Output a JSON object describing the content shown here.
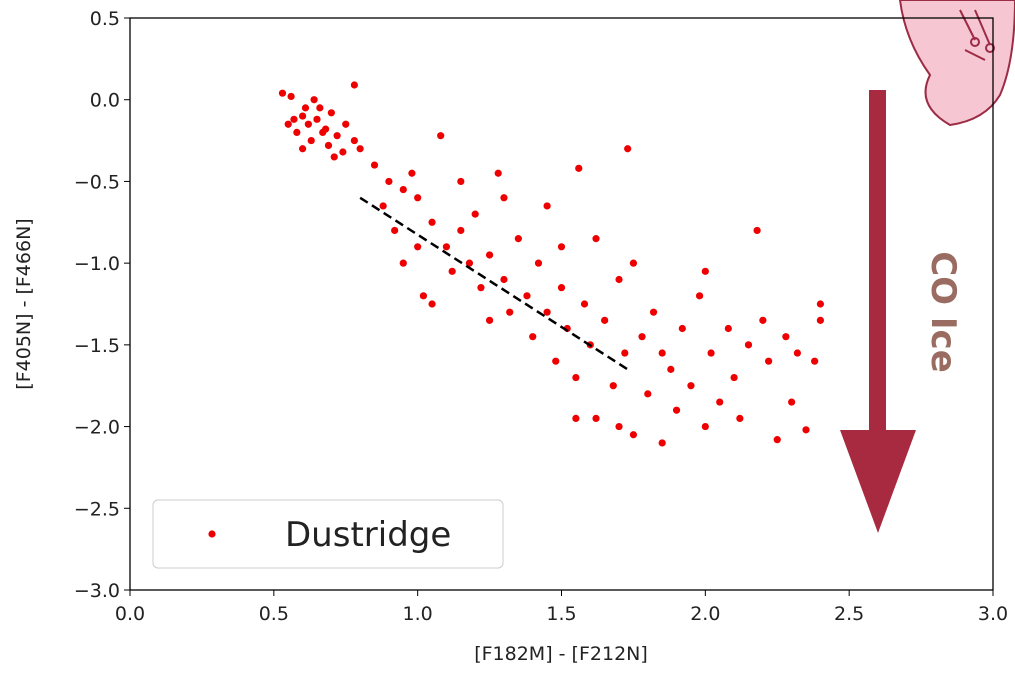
{
  "chart_data": {
    "type": "scatter",
    "xlabel": "[F182M] - [F212N]",
    "ylabel": "[F405N] - [F466N]",
    "xlim": [
      0,
      3.0
    ],
    "ylim": [
      -3.0,
      0.5
    ],
    "xticks": [
      {
        "value": 0,
        "label": "0.0"
      },
      0.5,
      {
        "value": 1,
        "label": "1.0"
      },
      1.5,
      {
        "value": 2,
        "label": "2.0"
      },
      2.5,
      {
        "value": 3,
        "label": "3.0"
      }
    ],
    "yticks": [
      {
        "value": -3,
        "label": "−3.0"
      },
      {
        "value": -2.5,
        "label": "−2.5"
      },
      {
        "value": -2,
        "label": "−2.0"
      },
      {
        "value": -1.5,
        "label": "−1.5"
      },
      {
        "value": -1,
        "label": "−1.0"
      },
      {
        "value": -0.5,
        "label": "−0.5"
      },
      {
        "value": 0,
        "label": "0.0"
      },
      0.5
    ],
    "legend": "lower left",
    "series": [
      {
        "name": "Dustridge",
        "color": "#ee0000",
        "x": [
          0.53,
          0.56,
          0.6,
          0.62,
          0.58,
          0.65,
          0.68,
          0.7,
          0.72,
          0.63,
          0.66,
          0.6,
          0.75,
          0.78,
          0.55,
          0.69,
          0.74,
          0.64,
          0.78,
          0.71,
          0.8,
          0.67,
          0.61,
          0.57,
          0.85,
          0.9,
          0.88,
          0.95,
          0.92,
          1.0,
          1.05,
          1.0,
          1.02,
          0.98,
          1.1,
          1.08,
          1.12,
          1.15,
          1.18,
          1.2,
          1.22,
          1.25,
          1.28,
          1.3,
          1.32,
          1.35,
          1.38,
          1.4,
          1.42,
          1.45,
          1.48,
          1.5,
          1.52,
          1.55,
          1.56,
          1.58,
          1.6,
          1.62,
          1.65,
          1.68,
          1.7,
          1.72,
          1.73,
          1.75,
          1.78,
          1.8,
          1.82,
          1.85,
          1.88,
          1.9,
          1.92,
          1.95,
          1.98,
          2.0,
          2.02,
          2.05,
          2.08,
          2.1,
          2.12,
          2.15,
          2.18,
          2.2,
          2.22,
          2.25,
          2.28,
          2.3,
          2.32,
          2.35,
          2.38,
          2.4,
          2.4,
          1.62,
          1.75,
          1.3,
          0.95,
          1.05,
          1.15,
          1.45,
          2.0,
          1.85,
          1.7,
          1.55,
          1.25,
          1.5
        ],
        "values": [
          0.04,
          0.02,
          -0.1,
          -0.15,
          -0.2,
          -0.12,
          -0.18,
          -0.08,
          -0.22,
          -0.25,
          -0.05,
          -0.3,
          -0.15,
          -0.25,
          -0.15,
          -0.28,
          -0.32,
          0.0,
          0.09,
          -0.35,
          -0.3,
          -0.2,
          -0.05,
          -0.12,
          -0.4,
          -0.5,
          -0.65,
          -0.55,
          -0.8,
          -0.6,
          -0.75,
          -0.9,
          -1.2,
          -0.45,
          -0.9,
          -0.22,
          -1.05,
          -0.8,
          -1.0,
          -0.7,
          -1.15,
          -0.95,
          -0.45,
          -1.1,
          -1.3,
          -0.85,
          -1.2,
          -1.45,
          -1.0,
          -1.3,
          -1.6,
          -1.15,
          -1.4,
          -1.7,
          -0.42,
          -1.25,
          -1.5,
          -1.95,
          -1.35,
          -1.75,
          -1.1,
          -1.55,
          -0.3,
          -2.05,
          -1.45,
          -1.8,
          -1.3,
          -2.1,
          -1.65,
          -1.9,
          -1.4,
          -1.75,
          -1.2,
          -2.0,
          -1.55,
          -1.85,
          -1.4,
          -1.7,
          -1.95,
          -1.5,
          -0.8,
          -1.35,
          -1.6,
          -2.08,
          -1.45,
          -1.85,
          -1.55,
          -2.02,
          -1.6,
          -1.25,
          -1.35,
          -0.85,
          -1.0,
          -0.6,
          -1.0,
          -1.25,
          -0.5,
          -0.65,
          -1.05,
          -1.55,
          -2.0,
          -1.95,
          -1.35,
          -0.9
        ]
      }
    ],
    "fit_line": {
      "x": [
        0.8,
        1.73
      ],
      "values": [
        -0.6,
        -1.65
      ],
      "color": "#000000"
    },
    "annotation": "CO Ice"
  }
}
